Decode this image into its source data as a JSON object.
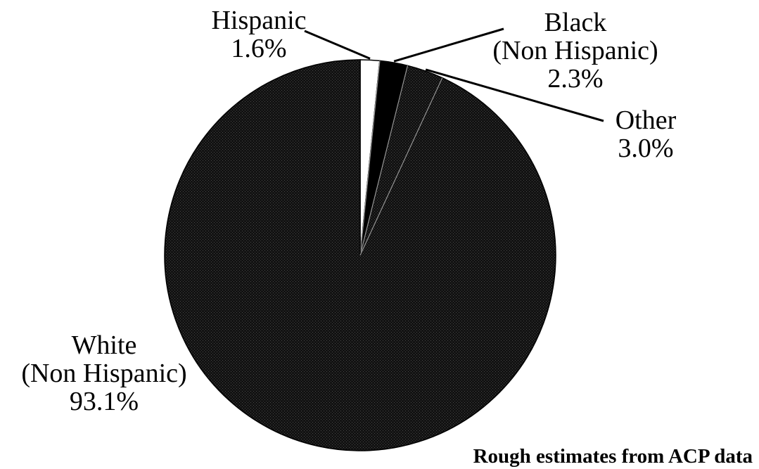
{
  "chart_data": {
    "type": "pie",
    "slices": [
      {
        "label_lines": [
          "Hispanic",
          "1.6%"
        ],
        "value": 1.6,
        "color": "#ffffff"
      },
      {
        "label_lines": [
          "Black",
          "(Non Hispanic)",
          "2.3%"
        ],
        "value": 2.3,
        "color": "#000000"
      },
      {
        "label_lines": [
          "Other",
          "3.0%"
        ],
        "value": 3.0,
        "color": "#0a0a0a"
      },
      {
        "label_lines": [
          "White",
          "(Non Hispanic)",
          "93.1%"
        ],
        "value": 93.1,
        "color": "#111111"
      }
    ],
    "legend": "none",
    "note": "Rough estimates from ACP data"
  }
}
